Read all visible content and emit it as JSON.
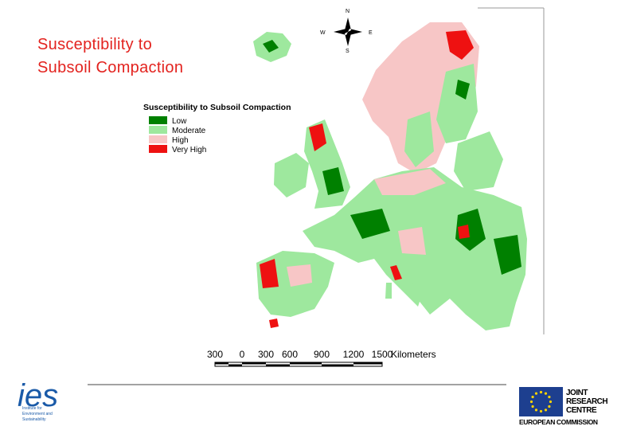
{
  "title": {
    "lines": [
      "Susceptibility to",
      "Subsoil Compaction"
    ]
  },
  "map": {
    "legend": {
      "title": "Susceptibility to Subsoil Compaction",
      "items": [
        {
          "label": "Low",
          "color": "#008000"
        },
        {
          "label": "Moderate",
          "color": "#9ee89e"
        },
        {
          "label": "High",
          "color": "#f7c6c6"
        },
        {
          "label": "Very High",
          "color": "#ee1111"
        }
      ]
    },
    "compass": {
      "north": "N",
      "west": "W",
      "east": "E",
      "south": "S"
    },
    "scale": {
      "labels": [
        "300",
        "0",
        "300",
        "600",
        "900",
        "1200",
        "1500"
      ],
      "unit": "Kilometers"
    }
  },
  "logos": {
    "ies": {
      "mark": "ies",
      "caption": [
        "Institute for",
        "Environment and",
        "Sustainability"
      ]
    },
    "jrc": {
      "name": [
        "JOINT",
        "RESEARCH",
        "CENTRE"
      ],
      "commission": "EUROPEAN COMMISSION"
    }
  }
}
